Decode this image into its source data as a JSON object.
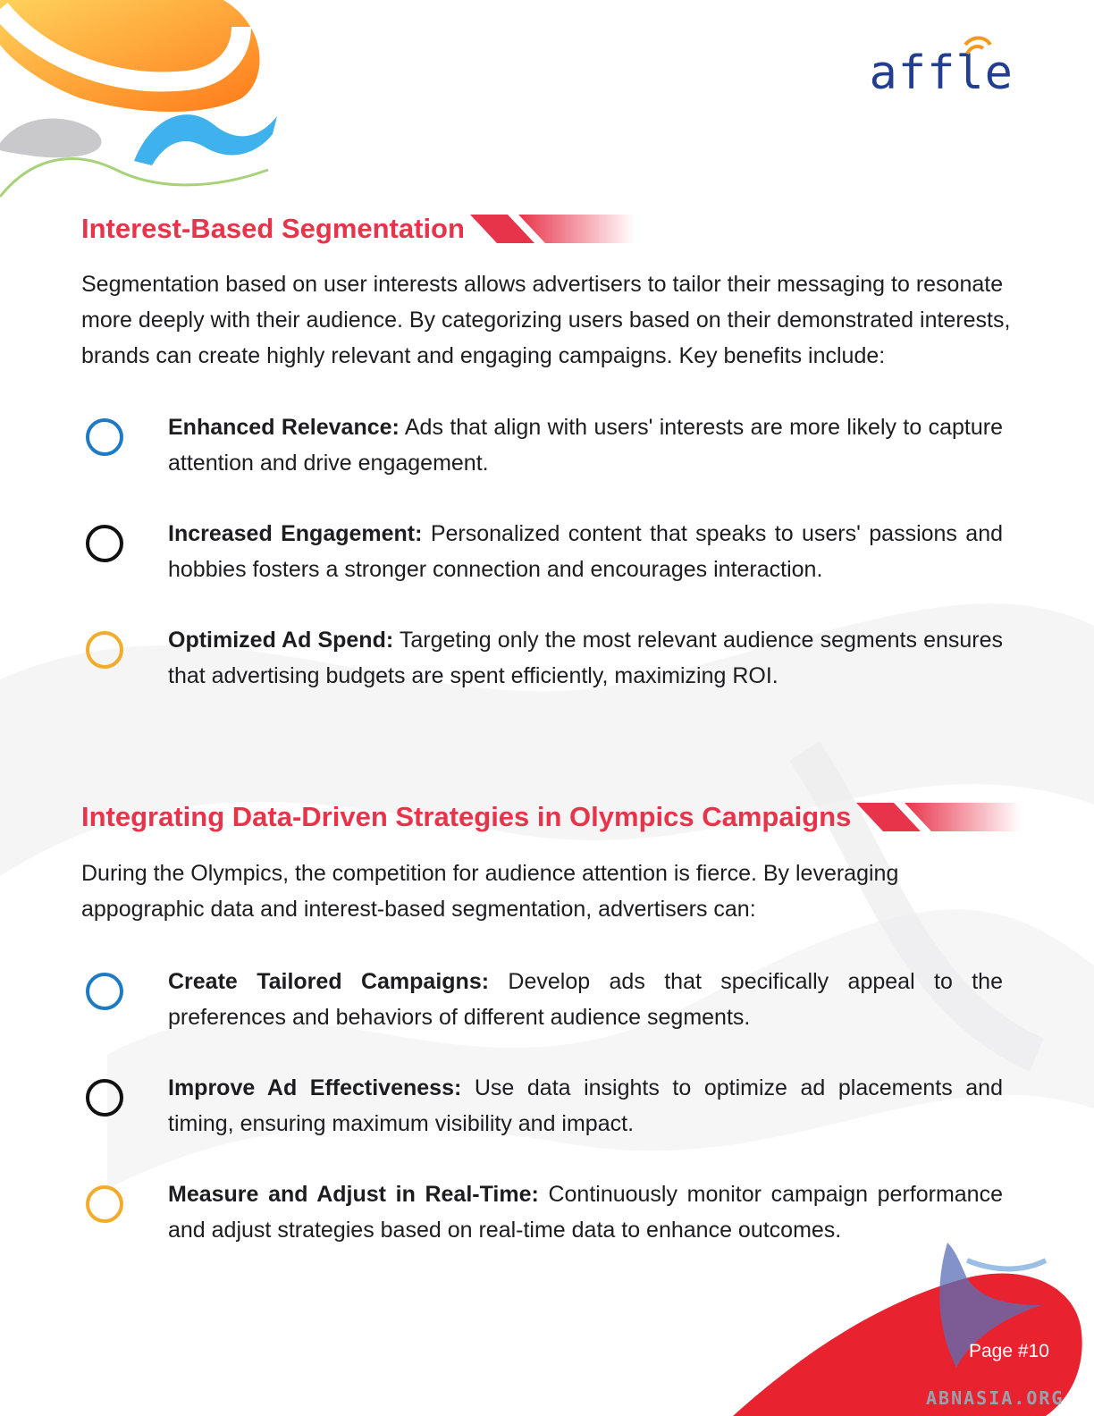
{
  "brand": {
    "logo_text": "affle"
  },
  "section1": {
    "title": "Interest-Based Segmentation",
    "intro": "Segmentation based on user interests allows advertisers to tailor their messaging to resonate more deeply with their audience. By categorizing users based on their demonstrated interests, brands can create highly relevant and engaging campaigns. Key benefits include:",
    "items": [
      {
        "label": "Enhanced Relevance:",
        "text": " Ads that align with users' interests are more likely to capture attention and drive engagement."
      },
      {
        "label": "Increased Engagement:",
        "text": " Personalized content that speaks to users' passions and hobbies fosters a stronger connection and encourages interaction."
      },
      {
        "label": "Optimized Ad Spend:",
        "text": " Targeting only the most relevant audience segments ensures that advertising budgets are spent efficiently, maximizing ROI."
      }
    ]
  },
  "section2": {
    "title": "Integrating Data-Driven Strategies in Olympics Campaigns",
    "intro": "During the Olympics, the competition for audience attention is fierce. By leveraging appographic data and interest-based segmentation, advertisers can:",
    "items": [
      {
        "label": "Create Tailored Campaigns:",
        "text": " Develop ads that specifically appeal to the preferences and behaviors of different audience segments."
      },
      {
        "label": "Improve Ad Effectiveness:",
        "text": " Use data insights to optimize ad placements and timing, ensuring maximum visibility and impact."
      },
      {
        "label": "Measure and Adjust in Real-Time:",
        "text": " Continuously monitor campaign performance and adjust strategies based on real-time data to enhance outcomes."
      }
    ]
  },
  "footer": {
    "page": "Page #10",
    "watermark": "ABNASIA.ORG"
  },
  "colors": {
    "heading": "#e8344a",
    "ring_blue": "#1f7ac4",
    "ring_black": "#111111",
    "ring_orange": "#f2ab2a",
    "logo": "#233d8f"
  }
}
